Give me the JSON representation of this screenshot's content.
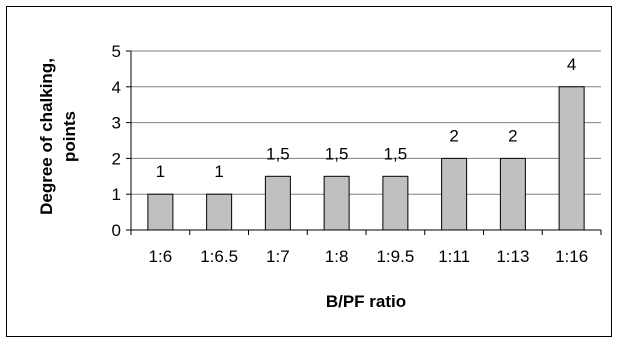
{
  "chart_data": {
    "type": "bar",
    "categories": [
      "1:6",
      "1:6.5",
      "1:7",
      "1:8",
      "1:9.5",
      "1:11",
      "1:13",
      "1:16"
    ],
    "values": [
      1,
      1,
      1.5,
      1.5,
      1.5,
      2,
      2,
      4
    ],
    "data_labels": [
      "1",
      "1",
      "1,5",
      "1,5",
      "1,5",
      "2",
      "2",
      "4"
    ],
    "xlabel": "B/PF ratio",
    "ylabel_lines": [
      "Degree of chalking,",
      "points"
    ],
    "ylim": [
      0,
      5
    ],
    "yticks": [
      0,
      1,
      2,
      3,
      4,
      5
    ],
    "grid": true,
    "legend": "none",
    "colors": {
      "bar_fill": "#c0c0c0",
      "bar_stroke": "#000000",
      "grid": "#808080",
      "axis": "#000000"
    }
  }
}
